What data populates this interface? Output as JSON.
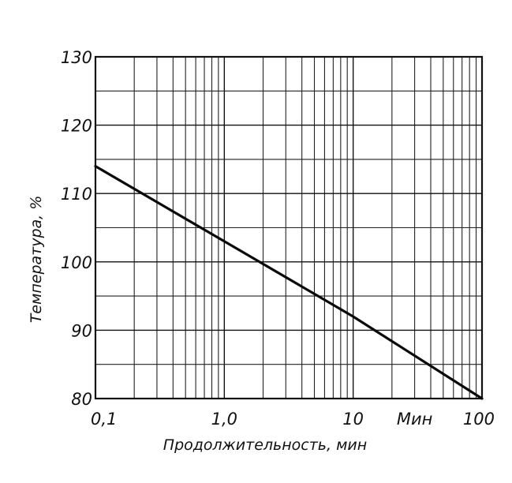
{
  "chart_data": {
    "type": "line",
    "title": "",
    "xlabel": "Продолжительность, мин",
    "ylabel": "Температура, %",
    "x_scale": "log",
    "xlim": [
      0.1,
      100
    ],
    "ylim": [
      80,
      130
    ],
    "grid": true,
    "x_ticks": [
      {
        "value": 0.1,
        "label": "0,1"
      },
      {
        "value": 1,
        "label": "1,0"
      },
      {
        "value": 10,
        "label": "10"
      },
      {
        "value": 100,
        "label": "100"
      }
    ],
    "x_extra_label": {
      "value": 30,
      "label": "Мин"
    },
    "y_ticks": [
      {
        "value": 80,
        "label": "80"
      },
      {
        "value": 90,
        "label": "90"
      },
      {
        "value": 100,
        "label": "100"
      },
      {
        "value": 110,
        "label": "110"
      },
      {
        "value": 120,
        "label": "120"
      },
      {
        "value": 130,
        "label": "130"
      }
    ],
    "series": [
      {
        "x": [
          0.1,
          1,
          10,
          100
        ],
        "y": [
          114,
          103,
          92,
          80
        ]
      }
    ]
  }
}
